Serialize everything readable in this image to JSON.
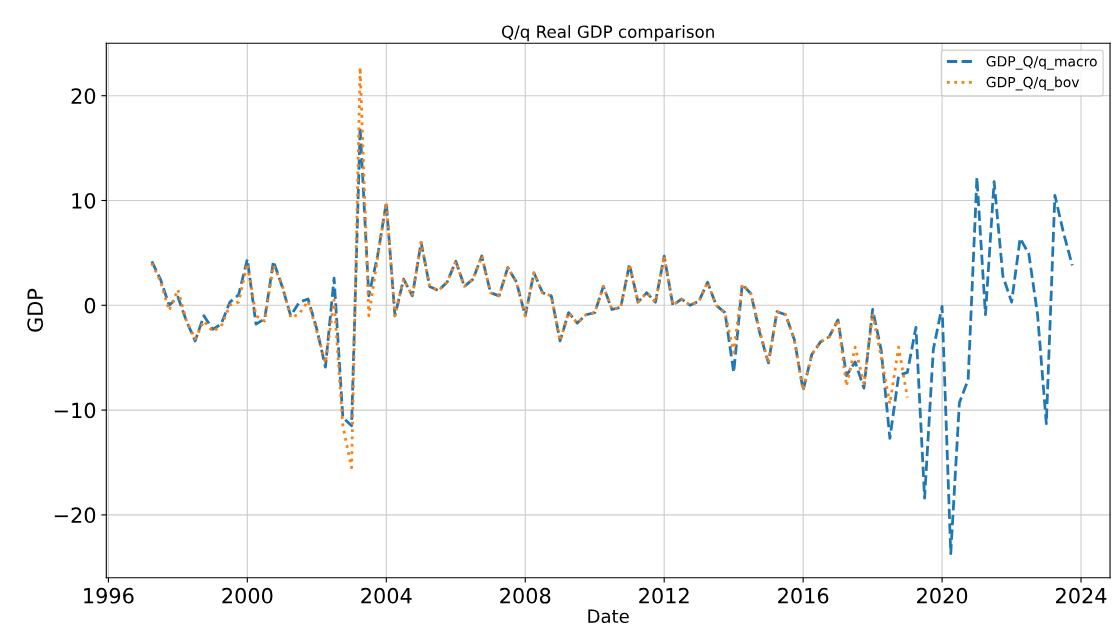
{
  "chart_data": {
    "type": "line",
    "title": "Q/q Real GDP comparison",
    "xlabel": "Date",
    "ylabel": "GDP",
    "xlim": [
      "1995-12-10",
      "2024-11-01"
    ],
    "xticks": [
      "1996",
      "2000",
      "2004",
      "2008",
      "2012",
      "2016",
      "2020",
      "2024"
    ],
    "ylim": [
      -26,
      25
    ],
    "yticks": [
      -20,
      -10,
      0,
      10,
      20
    ],
    "grid": true,
    "legend": "top right",
    "marker": "none",
    "series": [
      {
        "name": "GDP_Q/q_macro",
        "color": "#1f77b4",
        "line_style": "dashed",
        "x": [
          "1997-04",
          "1997-07",
          "1997-10",
          "1998-01",
          "1998-04",
          "1998-07",
          "1998-10",
          "1999-01",
          "1999-04",
          "1999-07",
          "1999-10",
          "2000-01",
          "2000-04",
          "2000-07",
          "2000-10",
          "2001-01",
          "2001-04",
          "2001-07",
          "2001-10",
          "2002-01",
          "2002-04",
          "2002-07",
          "2002-10",
          "2003-01",
          "2003-04",
          "2003-07",
          "2003-10",
          "2004-01",
          "2004-04",
          "2004-07",
          "2004-10",
          "2005-01",
          "2005-04",
          "2005-07",
          "2005-10",
          "2006-01",
          "2006-04",
          "2006-07",
          "2006-10",
          "2007-01",
          "2007-04",
          "2007-07",
          "2007-10",
          "2008-01",
          "2008-04",
          "2008-07",
          "2008-10",
          "2009-01",
          "2009-04",
          "2009-07",
          "2009-10",
          "2010-01",
          "2010-04",
          "2010-07",
          "2010-10",
          "2011-01",
          "2011-04",
          "2011-07",
          "2011-10",
          "2012-01",
          "2012-04",
          "2012-07",
          "2012-10",
          "2013-01",
          "2013-04",
          "2013-07",
          "2013-10",
          "2014-01",
          "2014-04",
          "2014-07",
          "2014-10",
          "2015-01",
          "2015-04",
          "2015-07",
          "2015-10",
          "2016-01",
          "2016-04",
          "2016-07",
          "2016-10",
          "2017-01",
          "2017-04",
          "2017-07",
          "2017-10",
          "2018-01",
          "2018-04",
          "2018-07",
          "2018-10",
          "2019-01",
          "2019-04",
          "2019-07",
          "2019-10",
          "2020-01",
          "2020-04",
          "2020-07",
          "2020-10",
          "2021-01",
          "2021-04",
          "2021-07",
          "2021-10",
          "2022-01",
          "2022-04",
          "2022-07",
          "2022-10",
          "2023-01",
          "2023-04",
          "2023-07",
          "2023-10"
        ],
        "values": [
          4.2,
          2.5,
          0.0,
          0.8,
          -1.5,
          -3.4,
          -1.0,
          -2.3,
          -1.8,
          0.3,
          1.0,
          4.4,
          -1.8,
          -1.3,
          4.2,
          1.8,
          -1.0,
          0.3,
          0.6,
          -2.3,
          -5.9,
          2.6,
          -10.7,
          -11.5,
          17.0,
          0.9,
          4.7,
          9.8,
          -1.0,
          2.5,
          0.9,
          6.0,
          1.8,
          1.4,
          2.2,
          4.2,
          1.8,
          2.5,
          4.7,
          1.2,
          0.9,
          3.6,
          2.2,
          -1.0,
          3.1,
          1.2,
          0.9,
          -3.4,
          -0.7,
          -1.7,
          -0.9,
          -0.7,
          1.8,
          -0.4,
          -0.2,
          3.9,
          0.3,
          1.2,
          0.3,
          4.7,
          0.0,
          0.6,
          0.0,
          0.4,
          2.2,
          0.0,
          -0.7,
          -6.4,
          2.0,
          1.1,
          -2.6,
          -5.5,
          -0.6,
          -0.9,
          -3.3,
          -8.1,
          -4.7,
          -3.5,
          -3.0,
          -1.4,
          -6.7,
          -5.4,
          -7.9,
          -0.4,
          -4.3,
          -12.7,
          -6.7,
          -6.4,
          -2.1,
          -18.4,
          -4.2,
          -0.1,
          -23.7,
          -9.3,
          -7.1,
          12.2,
          -0.9,
          11.8,
          2.8,
          0.3,
          6.4,
          4.9,
          -0.9,
          -11.3,
          10.5,
          6.9,
          3.8
        ]
      },
      {
        "name": "GDP_Q/q_bov",
        "color": "#ff7f0e",
        "line_style": "dotted",
        "x": [
          "1997-04",
          "1997-07",
          "1997-10",
          "1998-01",
          "1998-04",
          "1998-07",
          "1998-10",
          "1999-01",
          "1999-04",
          "1999-07",
          "1999-10",
          "2000-01",
          "2000-04",
          "2000-07",
          "2000-10",
          "2001-01",
          "2001-04",
          "2001-07",
          "2001-10",
          "2002-01",
          "2002-04",
          "2002-07",
          "2002-10",
          "2003-01",
          "2003-04",
          "2003-07",
          "2003-10",
          "2004-01",
          "2004-04",
          "2004-07",
          "2004-10",
          "2005-01",
          "2005-04",
          "2005-07",
          "2005-10",
          "2006-01",
          "2006-04",
          "2006-07",
          "2006-10",
          "2007-01",
          "2007-04",
          "2007-07",
          "2007-10",
          "2008-01",
          "2008-04",
          "2008-07",
          "2008-10",
          "2009-01",
          "2009-04",
          "2009-07",
          "2009-10",
          "2010-01",
          "2010-04",
          "2010-07",
          "2010-10",
          "2011-01",
          "2011-04",
          "2011-07",
          "2011-10",
          "2012-01",
          "2012-04",
          "2012-07",
          "2012-10",
          "2013-01",
          "2013-04",
          "2013-07",
          "2013-10",
          "2014-01",
          "2014-04",
          "2014-07",
          "2014-10",
          "2015-01",
          "2015-04",
          "2015-07",
          "2015-10",
          "2016-01",
          "2016-04",
          "2016-07",
          "2016-10",
          "2017-01",
          "2017-04",
          "2017-07",
          "2017-10",
          "2018-01",
          "2018-04",
          "2018-07",
          "2018-10",
          "2019-01"
        ],
        "values": [
          4.0,
          2.3,
          -0.5,
          1.5,
          -1.5,
          -3.2,
          -1.5,
          -2.5,
          -2.0,
          0.0,
          0.3,
          4.0,
          -1.0,
          -1.5,
          3.8,
          2.0,
          -1.2,
          -0.8,
          0.4,
          -2.5,
          -5.5,
          0.5,
          -11.5,
          -15.5,
          22.7,
          -1.0,
          4.5,
          9.8,
          -1.0,
          2.5,
          0.9,
          6.0,
          1.8,
          1.4,
          2.2,
          4.2,
          1.8,
          2.5,
          4.7,
          1.2,
          0.9,
          3.6,
          2.2,
          -1.0,
          3.1,
          1.2,
          0.9,
          -3.4,
          -0.7,
          -1.7,
          -0.9,
          -0.7,
          1.8,
          -0.4,
          -0.2,
          3.9,
          0.3,
          1.2,
          0.3,
          4.7,
          0.0,
          0.6,
          0.0,
          0.4,
          2.2,
          0.0,
          -0.7,
          -4.5,
          2.0,
          1.1,
          -2.4,
          -5.5,
          -0.6,
          -0.9,
          -3.3,
          -8.1,
          -4.7,
          -3.5,
          -3.0,
          -1.4,
          -7.7,
          -4.0,
          -7.5,
          -0.8,
          -5.0,
          -9.4,
          -4.0,
          -8.8
        ]
      }
    ]
  }
}
